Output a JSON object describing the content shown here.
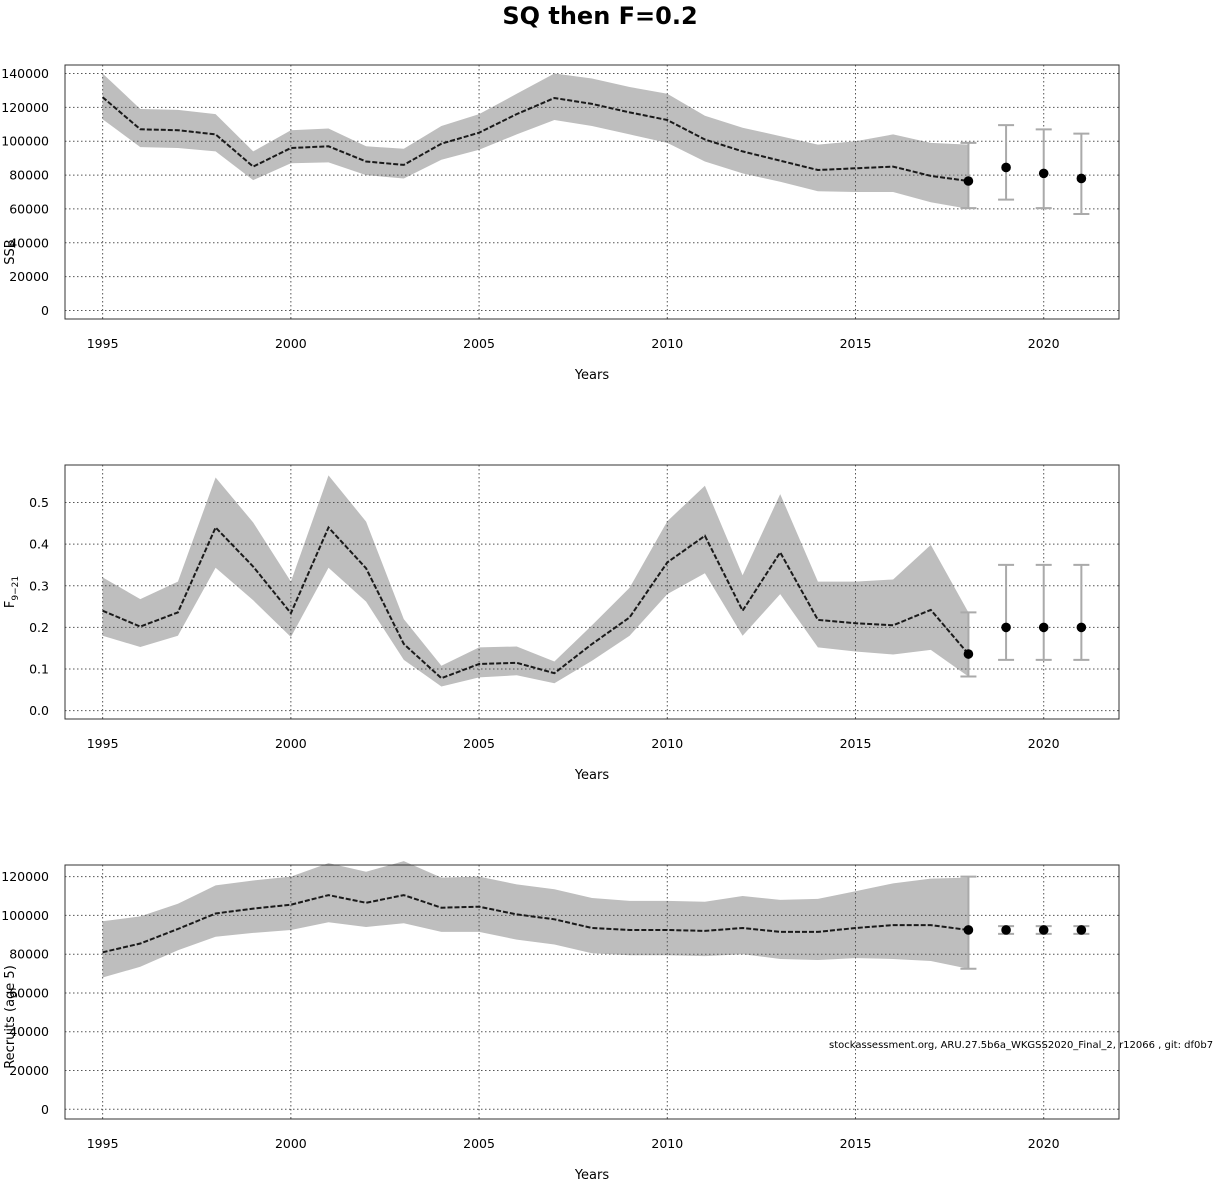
{
  "figure": {
    "title": "SQ then F=0.2",
    "footnote": "stockassessment.org, ARU.27.5b6a_WKGSS2020_Final_2, r12066 , git: df0b7"
  },
  "colors": {
    "band": "#bebebe",
    "line": "#1a1a1a",
    "point": "#000000",
    "errorbar": "#aaaaaa",
    "grid": "#555555"
  },
  "chart_data": [
    {
      "id": "ssb",
      "type": "line",
      "ylabel": "SSB",
      "xlabel": "Years",
      "xlim": [
        1994,
        2022
      ],
      "ylim": [
        -5000,
        145000
      ],
      "xticks": [
        1995,
        2000,
        2005,
        2010,
        2015,
        2020
      ],
      "yticks": [
        0,
        20000,
        40000,
        60000,
        80000,
        100000,
        120000,
        140000
      ],
      "grid": true,
      "history": {
        "x": [
          1995,
          1996,
          1997,
          1998,
          1999,
          2000,
          2001,
          2002,
          2003,
          2004,
          2005,
          2006,
          2007,
          2008,
          2009,
          2010,
          2011,
          2012,
          2013,
          2014,
          2015,
          2016,
          2017,
          2018
        ],
        "y": [
          126000,
          107000,
          106500,
          104000,
          85000,
          96000,
          97000,
          88000,
          86000,
          98500,
          105000,
          116000,
          125500,
          122000,
          117000,
          112500,
          101000,
          94000,
          88500,
          83000,
          84000,
          85000,
          79500,
          76500
        ],
        "lower": [
          113000,
          96500,
          96000,
          94000,
          77000,
          87000,
          87500,
          80000,
          78000,
          89000,
          95000,
          104000,
          112500,
          109000,
          104000,
          99000,
          88000,
          81000,
          76000,
          70500,
          70000,
          70000,
          64000,
          60000
        ],
        "upper": [
          140000,
          119000,
          118500,
          116000,
          94000,
          106500,
          107500,
          97000,
          95500,
          109000,
          116000,
          128000,
          140000,
          137000,
          132000,
          128000,
          115000,
          108000,
          103000,
          98000,
          100000,
          104000,
          99000,
          98000
        ]
      },
      "forecast": {
        "x": [
          2018,
          2019,
          2020,
          2021
        ],
        "y": [
          76500,
          84500,
          81000,
          78000
        ],
        "lower": [
          60500,
          65500,
          60500,
          57000
        ],
        "upper": [
          99000,
          109500,
          107000,
          104500
        ]
      }
    },
    {
      "id": "fbar",
      "type": "line",
      "ylabel": "F",
      "ylabel_sub": "9−21",
      "xlabel": "Years",
      "xlim": [
        1994,
        2022
      ],
      "ylim": [
        -0.02,
        0.59
      ],
      "xticks": [
        1995,
        2000,
        2005,
        2010,
        2015,
        2020
      ],
      "yticks": [
        0.0,
        0.1,
        0.2,
        0.3,
        0.4,
        0.5
      ],
      "yticklabels": [
        "0.0",
        "0.1",
        "0.2",
        "0.3",
        "0.4",
        "0.5"
      ],
      "grid": true,
      "history": {
        "x": [
          1995,
          1996,
          1997,
          1998,
          1999,
          2000,
          2001,
          2002,
          2003,
          2004,
          2005,
          2006,
          2007,
          2008,
          2009,
          2010,
          2011,
          2012,
          2013,
          2014,
          2015,
          2016,
          2017,
          2018
        ],
        "y": [
          0.24,
          0.202,
          0.236,
          0.44,
          0.346,
          0.234,
          0.44,
          0.342,
          0.16,
          0.078,
          0.112,
          0.115,
          0.09,
          0.16,
          0.224,
          0.356,
          0.42,
          0.24,
          0.38,
          0.218,
          0.21,
          0.205,
          0.242,
          0.136
        ],
        "lower": [
          0.18,
          0.153,
          0.18,
          0.343,
          0.265,
          0.177,
          0.343,
          0.262,
          0.122,
          0.058,
          0.08,
          0.085,
          0.066,
          0.12,
          0.18,
          0.28,
          0.33,
          0.18,
          0.28,
          0.152,
          0.142,
          0.135,
          0.146,
          0.082
        ],
        "upper": [
          0.32,
          0.268,
          0.31,
          0.56,
          0.452,
          0.31,
          0.565,
          0.454,
          0.22,
          0.108,
          0.152,
          0.154,
          0.118,
          0.205,
          0.295,
          0.455,
          0.54,
          0.325,
          0.52,
          0.31,
          0.31,
          0.315,
          0.398,
          0.236
        ]
      },
      "forecast": {
        "x": [
          2018,
          2019,
          2020,
          2021
        ],
        "y": [
          0.136,
          0.2,
          0.2,
          0.2
        ],
        "lower": [
          0.082,
          0.122,
          0.122,
          0.122
        ],
        "upper": [
          0.236,
          0.35,
          0.35,
          0.35
        ]
      }
    },
    {
      "id": "recruits",
      "type": "line",
      "ylabel": "Recruits (age 5)",
      "xlabel": "Years",
      "xlim": [
        1994,
        2022
      ],
      "ylim": [
        -5000,
        126000
      ],
      "xticks": [
        1995,
        2000,
        2005,
        2010,
        2015,
        2020
      ],
      "yticks": [
        0,
        20000,
        40000,
        60000,
        80000,
        100000,
        120000
      ],
      "grid": true,
      "history": {
        "x": [
          1995,
          1996,
          1997,
          1998,
          1999,
          2000,
          2001,
          2002,
          2003,
          2004,
          2005,
          2006,
          2007,
          2008,
          2009,
          2010,
          2011,
          2012,
          2013,
          2014,
          2015,
          2016,
          2017,
          2018
        ],
        "y": [
          81000,
          85500,
          93000,
          101000,
          103500,
          105500,
          110500,
          106500,
          110500,
          104000,
          104500,
          100500,
          98000,
          93500,
          92500,
          92500,
          92000,
          93500,
          91500,
          91500,
          93500,
          95000,
          95000,
          92500
        ],
        "lower": [
          68000,
          73500,
          82000,
          89000,
          91000,
          92500,
          96500,
          94000,
          96000,
          91500,
          91500,
          87500,
          85000,
          80500,
          79500,
          79500,
          79000,
          80000,
          77500,
          77000,
          78000,
          77500,
          76500,
          72500
        ],
        "upper": [
          97000,
          99500,
          106000,
          115500,
          118000,
          120000,
          127000,
          122500,
          128000,
          119500,
          120000,
          116000,
          113500,
          109000,
          107500,
          107500,
          107000,
          110000,
          108000,
          108500,
          112500,
          116500,
          119000,
          119500
        ]
      },
      "forecast": {
        "x": [
          2018,
          2019,
          2020,
          2021
        ],
        "y": [
          92500,
          92500,
          92500,
          92500
        ],
        "lower": [
          72500,
          90500,
          90500,
          90500
        ],
        "upper": [
          120000,
          94500,
          94500,
          94500
        ]
      }
    }
  ]
}
